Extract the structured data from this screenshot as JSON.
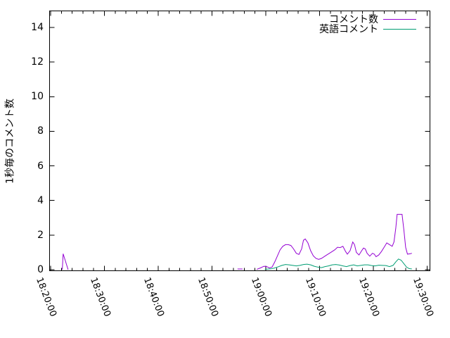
{
  "chart_data": {
    "type": "line",
    "title": "",
    "xlabel": "",
    "ylabel": "1秒毎のコメント数",
    "x_axis": {
      "tick_labels": [
        "18:20:00",
        "18:30:00",
        "18:40:00",
        "18:50:00",
        "19:00:00",
        "19:10:00",
        "19:20:00",
        "19:30:00"
      ],
      "minor_tick_interval_minutes": 2,
      "range": [
        "18:19:50",
        "19:30:30"
      ]
    },
    "y_axis": {
      "tick_labels": [
        0,
        2,
        4,
        6,
        8,
        10,
        12,
        14
      ],
      "range": [
        0,
        15
      ]
    },
    "grid": false,
    "legend_position": "top-right-inside",
    "series": [
      {
        "name": "コメント数",
        "color": "#9400d3",
        "segments": [
          [
            [
              "18:22:10",
              0
            ],
            [
              "18:22:20",
              0.92
            ],
            [
              "18:23:15",
              0
            ]
          ],
          [
            [
              "18:54:45",
              0.04
            ],
            [
              "18:55:40",
              0.04
            ]
          ],
          [
            [
              "18:58:20",
              0.02
            ],
            [
              "18:59:00",
              0.1
            ],
            [
              "18:59:40",
              0.2
            ],
            [
              "19:00:10",
              0.18
            ],
            [
              "19:00:40",
              0.1
            ],
            [
              "19:01:10",
              0.15
            ],
            [
              "19:01:40",
              0.45
            ],
            [
              "19:02:10",
              0.8
            ],
            [
              "19:02:40",
              1.15
            ],
            [
              "19:03:10",
              1.35
            ],
            [
              "19:03:40",
              1.45
            ],
            [
              "19:04:10",
              1.45
            ],
            [
              "19:04:40",
              1.4
            ],
            [
              "19:05:10",
              1.2
            ],
            [
              "19:05:40",
              0.95
            ],
            [
              "19:06:10",
              0.88
            ],
            [
              "19:06:40",
              1.2
            ],
            [
              "19:07:00",
              1.7
            ],
            [
              "19:07:20",
              1.78
            ],
            [
              "19:07:50",
              1.55
            ],
            [
              "19:08:20",
              1.1
            ],
            [
              "19:08:50",
              0.8
            ],
            [
              "19:09:20",
              0.65
            ],
            [
              "19:09:50",
              0.6
            ],
            [
              "19:10:20",
              0.65
            ],
            [
              "19:10:50",
              0.75
            ],
            [
              "19:11:20",
              0.85
            ],
            [
              "19:11:50",
              0.95
            ],
            [
              "19:12:20",
              1.05
            ],
            [
              "19:12:50",
              1.15
            ],
            [
              "19:13:20",
              1.3
            ],
            [
              "19:13:50",
              1.28
            ],
            [
              "19:14:20",
              1.35
            ],
            [
              "19:14:50",
              1.05
            ],
            [
              "19:15:10",
              0.9
            ],
            [
              "19:15:40",
              1.1
            ],
            [
              "19:16:10",
              1.6
            ],
            [
              "19:16:30",
              1.45
            ],
            [
              "19:16:50",
              1.0
            ],
            [
              "19:17:20",
              0.85
            ],
            [
              "19:17:50",
              1.1
            ],
            [
              "19:18:10",
              1.25
            ],
            [
              "19:18:30",
              1.2
            ],
            [
              "19:18:50",
              0.95
            ],
            [
              "19:19:20",
              0.78
            ],
            [
              "19:19:50",
              0.95
            ],
            [
              "19:20:10",
              0.9
            ],
            [
              "19:20:30",
              0.75
            ],
            [
              "19:21:00",
              0.85
            ],
            [
              "19:21:30",
              1.05
            ],
            [
              "19:22:00",
              1.3
            ],
            [
              "19:22:30",
              1.55
            ],
            [
              "19:23:00",
              1.45
            ],
            [
              "19:23:30",
              1.35
            ],
            [
              "19:23:50",
              1.6
            ],
            [
              "19:24:10",
              2.4
            ],
            [
              "19:24:25",
              3.2
            ],
            [
              "19:25:20",
              3.2
            ],
            [
              "19:25:40",
              2.3
            ],
            [
              "19:26:00",
              1.3
            ],
            [
              "19:26:20",
              0.9
            ],
            [
              "19:26:50",
              0.92
            ],
            [
              "19:27:10",
              0.95
            ]
          ]
        ]
      },
      {
        "name": "英語コメント",
        "color": "#009e73",
        "segments": [
          [
            [
              "18:59:50",
              0.02
            ],
            [
              "19:00:30",
              0.04
            ],
            [
              "19:01:00",
              0.05
            ],
            [
              "19:01:40",
              0.1
            ],
            [
              "19:02:20",
              0.17
            ],
            [
              "19:03:00",
              0.25
            ],
            [
              "19:03:40",
              0.3
            ],
            [
              "19:04:20",
              0.28
            ],
            [
              "19:05:00",
              0.25
            ],
            [
              "19:05:40",
              0.22
            ],
            [
              "19:06:20",
              0.25
            ],
            [
              "19:07:00",
              0.3
            ],
            [
              "19:07:40",
              0.32
            ],
            [
              "19:08:20",
              0.28
            ],
            [
              "19:09:00",
              0.2
            ],
            [
              "19:09:40",
              0.15
            ],
            [
              "19:10:20",
              0.12
            ],
            [
              "19:11:00",
              0.18
            ],
            [
              "19:11:40",
              0.22
            ],
            [
              "19:12:20",
              0.28
            ],
            [
              "19:13:00",
              0.3
            ],
            [
              "19:13:40",
              0.27
            ],
            [
              "19:14:20",
              0.22
            ],
            [
              "19:15:00",
              0.18
            ],
            [
              "19:15:40",
              0.24
            ],
            [
              "19:16:20",
              0.28
            ],
            [
              "19:17:00",
              0.22
            ],
            [
              "19:17:40",
              0.25
            ],
            [
              "19:18:20",
              0.28
            ],
            [
              "19:19:00",
              0.28
            ],
            [
              "19:19:40",
              0.24
            ],
            [
              "19:20:20",
              0.22
            ],
            [
              "19:21:00",
              0.26
            ],
            [
              "19:21:40",
              0.25
            ],
            [
              "19:22:20",
              0.24
            ],
            [
              "19:23:00",
              0.18
            ],
            [
              "19:23:40",
              0.25
            ],
            [
              "19:24:10",
              0.45
            ],
            [
              "19:24:40",
              0.62
            ],
            [
              "19:25:10",
              0.55
            ],
            [
              "19:25:40",
              0.35
            ],
            [
              "19:26:10",
              0.15
            ],
            [
              "19:26:40",
              0.06
            ],
            [
              "19:27:10",
              0.04
            ]
          ]
        ]
      }
    ]
  }
}
